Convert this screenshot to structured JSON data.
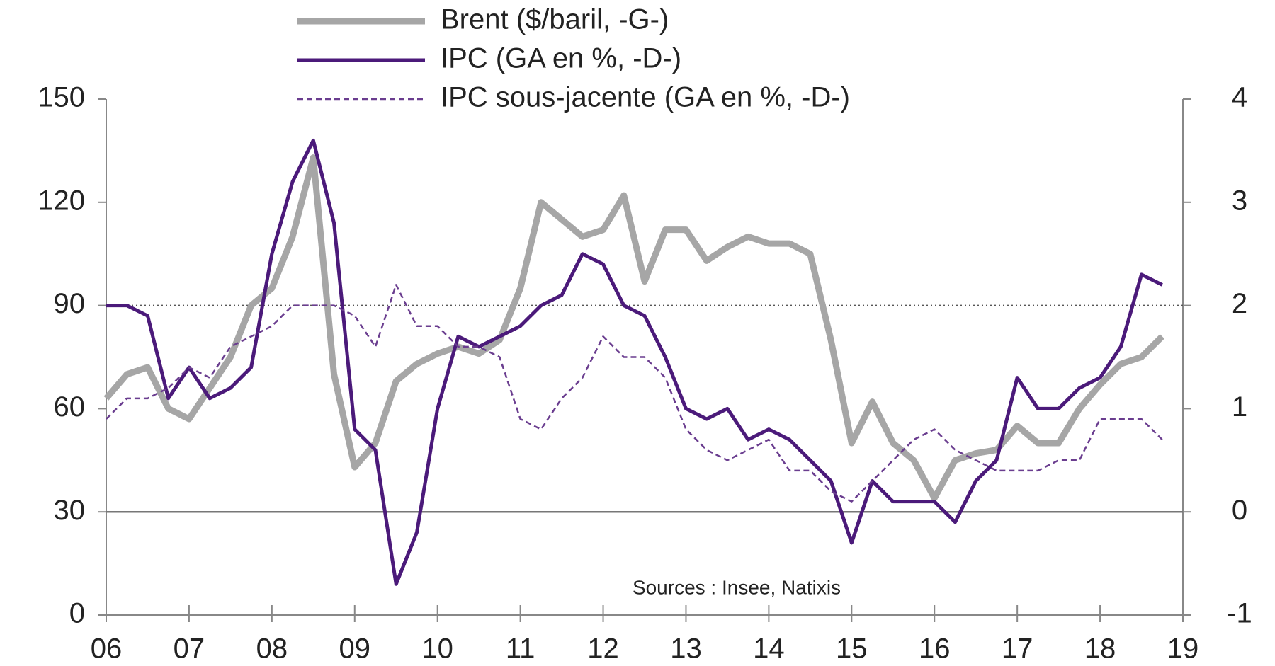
{
  "chart_data": {
    "type": "line",
    "annotation": "Sources : Insee, Natixis",
    "x": [
      2006,
      2006.25,
      2006.5,
      2006.75,
      2007,
      2007.25,
      2007.5,
      2007.75,
      2008,
      2008.25,
      2008.5,
      2008.75,
      2009,
      2009.25,
      2009.5,
      2009.75,
      2010,
      2010.25,
      2010.5,
      2010.75,
      2011,
      2011.25,
      2011.5,
      2011.75,
      2012,
      2012.25,
      2012.5,
      2012.75,
      2013,
      2013.25,
      2013.5,
      2013.75,
      2014,
      2014.25,
      2014.5,
      2014.75,
      2015,
      2015.25,
      2015.5,
      2015.75,
      2016,
      2016.25,
      2016.5,
      2016.75,
      2017,
      2017.25,
      2017.5,
      2017.75,
      2018,
      2018.25,
      2018.5,
      2018.75
    ],
    "series": [
      {
        "name": "Brent ($/baril, -G-)",
        "color": "#a6a6a6",
        "style": "thick",
        "values": [
          63,
          70,
          72,
          60,
          57,
          66,
          75,
          90,
          95,
          110,
          133,
          70,
          43,
          50,
          68,
          73,
          76,
          78,
          76,
          80,
          95,
          120,
          115,
          110,
          112,
          122,
          97,
          112,
          112,
          103,
          107,
          110,
          108,
          108,
          105,
          80,
          50,
          62,
          50,
          45,
          34,
          45,
          47,
          48,
          55,
          50,
          50,
          60,
          67,
          73,
          75,
          81
        ]
      },
      {
        "name": "IPC (GA en %, -D-)",
        "color": "#4b1a7a",
        "style": "solid",
        "axis": "y2",
        "values": [
          2.0,
          2.0,
          1.9,
          1.1,
          1.4,
          1.1,
          1.2,
          1.4,
          2.5,
          3.2,
          3.6,
          2.8,
          0.8,
          0.6,
          -0.7,
          -0.2,
          1.0,
          1.7,
          1.6,
          1.7,
          1.8,
          2.0,
          2.1,
          2.5,
          2.4,
          2.0,
          1.9,
          1.5,
          1.0,
          0.9,
          1.0,
          0.7,
          0.8,
          0.7,
          0.5,
          0.3,
          -0.3,
          0.3,
          0.1,
          0.1,
          0.1,
          -0.1,
          0.3,
          0.5,
          1.3,
          1.0,
          1.0,
          1.2,
          1.3,
          1.6,
          2.3,
          2.2
        ]
      },
      {
        "name": "IPC sous-jacente (GA en %, -D-)",
        "color": "#6a3d8f",
        "style": "dashed",
        "axis": "y2",
        "values": [
          0.9,
          1.1,
          1.1,
          1.2,
          1.4,
          1.3,
          1.6,
          1.7,
          1.8,
          2.0,
          2.0,
          2.0,
          1.9,
          1.6,
          2.2,
          1.8,
          1.8,
          1.6,
          1.6,
          1.5,
          0.9,
          0.8,
          1.1,
          1.3,
          1.7,
          1.5,
          1.5,
          1.3,
          0.8,
          0.6,
          0.5,
          0.6,
          0.7,
          0.4,
          0.4,
          0.2,
          0.1,
          0.3,
          0.5,
          0.7,
          0.8,
          0.6,
          0.5,
          0.4,
          0.4,
          0.4,
          0.5,
          0.5,
          0.9,
          0.9,
          0.9,
          0.7
        ]
      }
    ],
    "xlim": [
      2006,
      2019
    ],
    "xticks": [
      {
        "value": 2006,
        "label": "06"
      },
      {
        "value": 2007,
        "label": "07"
      },
      {
        "value": 2008,
        "label": "08"
      },
      {
        "value": 2009,
        "label": "09"
      },
      {
        "value": 2010,
        "label": "10"
      },
      {
        "value": 2011,
        "label": "11"
      },
      {
        "value": 2012,
        "label": "12"
      },
      {
        "value": 2013,
        "label": "13"
      },
      {
        "value": 2014,
        "label": "14"
      },
      {
        "value": 2015,
        "label": "15"
      },
      {
        "value": 2016,
        "label": "16"
      },
      {
        "value": 2017,
        "label": "17"
      },
      {
        "value": 2018,
        "label": "18"
      },
      {
        "value": 2019,
        "label": "19"
      }
    ],
    "ylim": [
      0,
      150
    ],
    "yticks": [
      0,
      30,
      60,
      90,
      120,
      150
    ],
    "y2lim": [
      -1,
      4
    ],
    "y2ticks": [
      -1,
      0,
      1,
      2,
      3,
      4
    ],
    "hlines": [
      {
        "value": 90,
        "style": "dotted"
      },
      {
        "value": 30,
        "style": "solid"
      }
    ]
  }
}
